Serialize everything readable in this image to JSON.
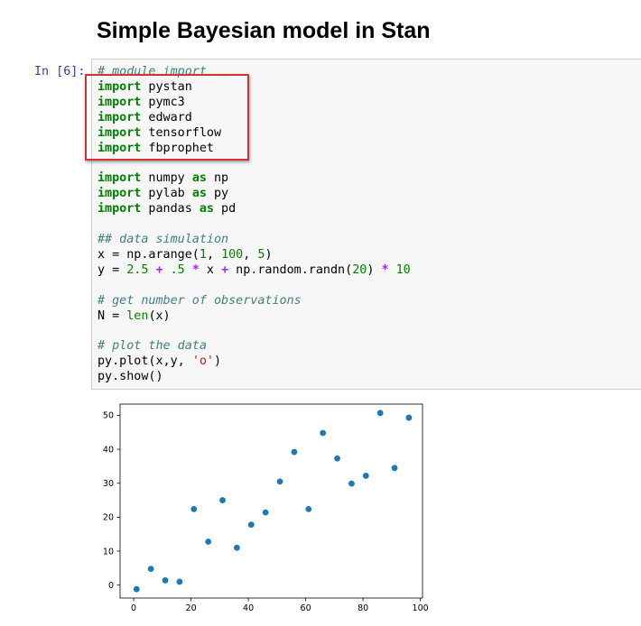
{
  "heading": "Simple Bayesian model in Stan",
  "cell": {
    "prompt": "In [6]:",
    "lines": {
      "l1": {
        "comment": "# module import"
      },
      "l2": {
        "kw": "import",
        "rest": " pystan"
      },
      "l3": {
        "kw": "import",
        "rest": " pymc3"
      },
      "l4": {
        "kw": "import",
        "rest": " edward"
      },
      "l5": {
        "kw": "import",
        "rest": " tensorflow"
      },
      "l6": {
        "kw": "import",
        "rest": " fbprophet"
      },
      "l8": {
        "kw": "import",
        "mod": " numpy ",
        "as": "as",
        "alias": " np"
      },
      "l9": {
        "kw": "import",
        "mod": " pylab ",
        "as": "as",
        "alias": " py"
      },
      "l10": {
        "kw": "import",
        "mod": " pandas ",
        "as": "as",
        "alias": " pd"
      },
      "l12": {
        "comment": "## data simulation"
      },
      "l13": {
        "a": "x = np.arange(",
        "n1": "1",
        "b": ", ",
        "n2": "100",
        "c": ", ",
        "n3": "5",
        "d": ")"
      },
      "l14": {
        "a": "y = ",
        "n1": "2.5",
        "s1": " ",
        "o1": "+",
        "s2": " ",
        "n2": ".5",
        "s3": " ",
        "o2": "*",
        "b": " x ",
        "o3": "+",
        "c": " np.random.randn(",
        "n3": "20",
        "d": ") ",
        "o4": "*",
        "s4": " ",
        "n4": "10"
      },
      "l16": {
        "comment": "# get number of observations"
      },
      "l17": {
        "a": "N = ",
        "fn": "len",
        "b": "(x)"
      },
      "l19": {
        "comment": "# plot the data"
      },
      "l20": {
        "a": "py.plot(x,y, ",
        "str": "'o'",
        "b": ")"
      },
      "l21": {
        "a": "py.show()"
      }
    }
  },
  "chart_data": {
    "type": "scatter",
    "x": [
      1,
      6,
      11,
      16,
      21,
      26,
      31,
      36,
      41,
      46,
      51,
      56,
      61,
      66,
      71,
      76,
      81,
      86,
      91,
      96
    ],
    "y": [
      -1.2,
      4.8,
      1.4,
      1.0,
      22.4,
      12.8,
      25.0,
      11.0,
      17.8,
      21.4,
      30.5,
      39.2,
      22.4,
      44.8,
      37.3,
      29.9,
      32.2,
      50.7,
      34.5,
      49.3
    ],
    "xticks": [
      "0",
      "20",
      "40",
      "60",
      "80",
      "100"
    ],
    "yticks": [
      "0",
      "10",
      "20",
      "30",
      "40",
      "50"
    ],
    "xlim": [
      -4.75,
      100.75
    ],
    "ylim": [
      -3.8,
      53.3
    ],
    "marker_color": "#1f77b4",
    "grid": false
  }
}
